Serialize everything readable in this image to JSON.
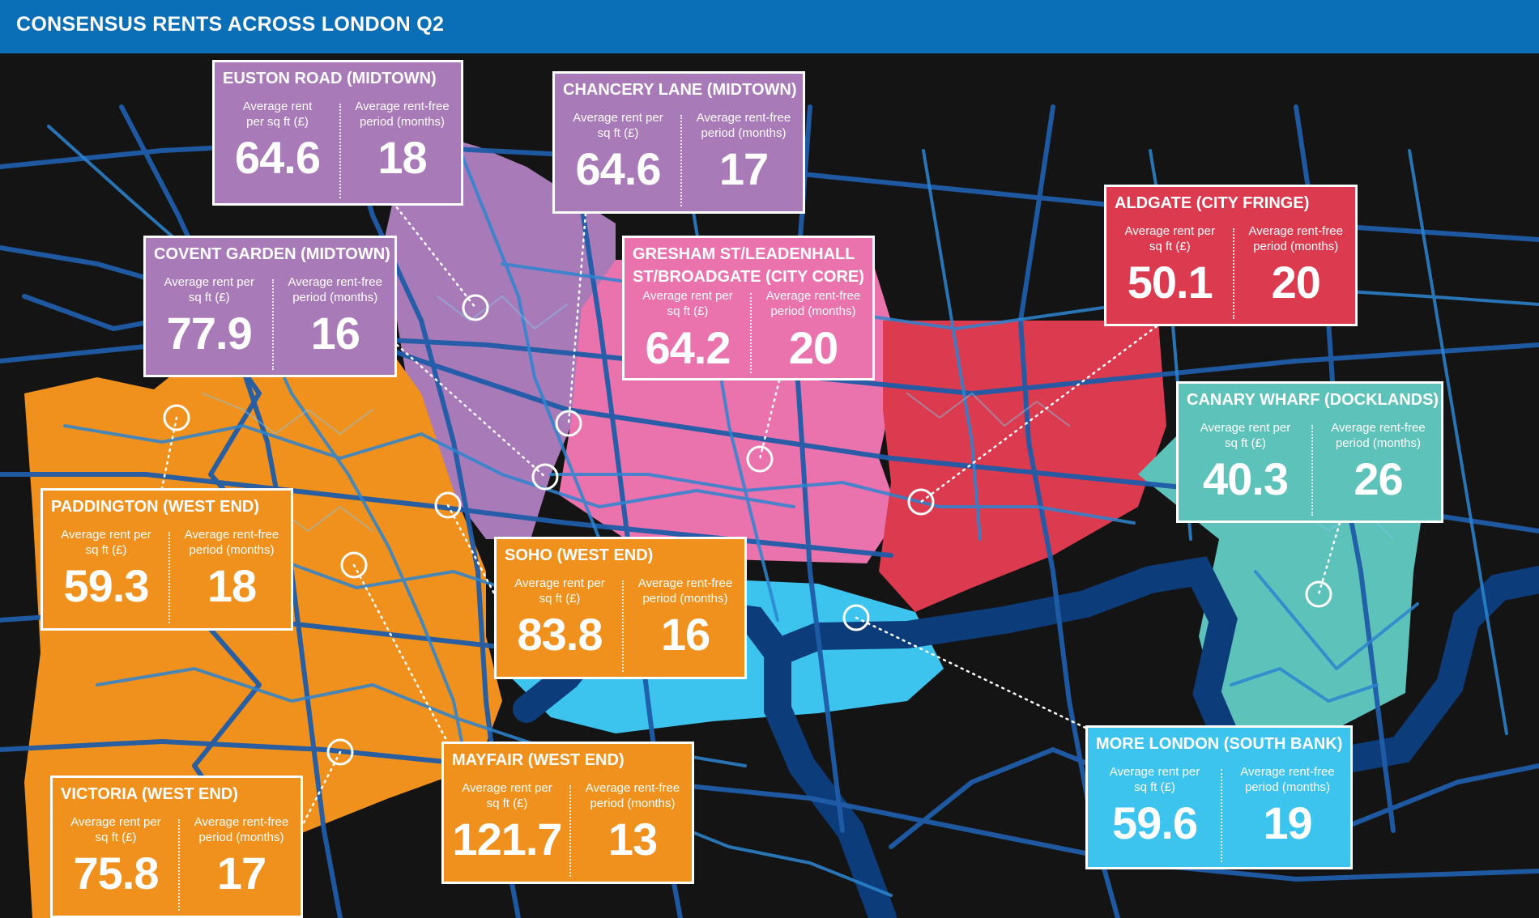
{
  "title": "CONSENSUS RENTS ACROSS LONDON Q2",
  "labels": {
    "rent": "Average rent per sq ft (£)",
    "free": "Average rent-free period (months)"
  },
  "colors": {
    "title_bar": "#0a6fb6",
    "background": "#141415",
    "midtown": "#a97ab8",
    "city_core": "#ea73ad",
    "city_fringe": "#dc3a4e",
    "docklands": "#5dc2ba",
    "west_end": "#f0911d",
    "south_bank": "#3cc4ef",
    "river": "#0c3c7a"
  },
  "areas": [
    {
      "id": "euston-road",
      "name": "EUSTON ROAD (MIDTOWN)",
      "district": "Midtown",
      "rent": "64.6",
      "free": "18"
    },
    {
      "id": "chancery-lane",
      "name": "CHANCERY LANE (MIDTOWN)",
      "district": "Midtown",
      "rent": "64.6",
      "free": "17"
    },
    {
      "id": "covent-garden",
      "name": "COVENT GARDEN (MIDTOWN)",
      "district": "Midtown",
      "rent": "77.9",
      "free": "16"
    },
    {
      "id": "gresham-st",
      "name": "GRESHAM ST/LEADENHALL ST/BROADGATE (CITY CORE)",
      "district": "City Core",
      "rent": "64.2",
      "free": "20"
    },
    {
      "id": "aldgate",
      "name": "ALDGATE (CITY FRINGE)",
      "district": "City Fringe",
      "rent": "50.1",
      "free": "20"
    },
    {
      "id": "canary-wharf",
      "name": "CANARY WHARF (DOCKLANDS)",
      "district": "Docklands",
      "rent": "40.3",
      "free": "26"
    },
    {
      "id": "paddington",
      "name": "PADDINGTON (WEST END)",
      "district": "West End",
      "rent": "59.3",
      "free": "18"
    },
    {
      "id": "soho",
      "name": "SOHO (WEST END)",
      "district": "West End",
      "rent": "83.8",
      "free": "16"
    },
    {
      "id": "more-london",
      "name": "MORE LONDON (SOUTH BANK)",
      "district": "South Bank",
      "rent": "59.6",
      "free": "19"
    },
    {
      "id": "mayfair",
      "name": "MAYFAIR (WEST END)",
      "district": "West End",
      "rent": "121.7",
      "free": "13"
    },
    {
      "id": "victoria",
      "name": "VICTORIA (WEST END)",
      "district": "West End",
      "rent": "75.8",
      "free": "17"
    }
  ]
}
